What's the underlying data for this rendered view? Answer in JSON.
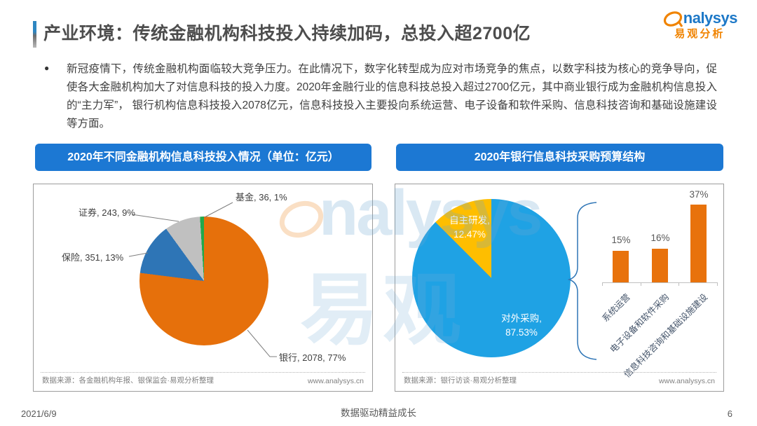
{
  "header": {
    "title": "产业环境：传统金融机构科技投入持续加码，总投入超2700亿",
    "logo": {
      "brand_en": "nalysys",
      "brand_cn": "易观分析"
    }
  },
  "body": {
    "bullet_glyph": "●",
    "paragraph": "新冠疫情下，传统金融机构面临较大竞争压力。在此情况下，数字化转型成为应对市场竞争的焦点，以数字科技为核心的竞争导向，促使各大金融机构加大了对信息科技的投入力度。2020年金融行业的信息科技总投入超过2700亿元，其中商业银行成为金融机构信息投入的“主力军”， 银行机构信息科技投入2078亿元，信息科技投入主要投向系统运营、电子设备和软件采购、信息科技咨询和基础设施建设等方面。"
  },
  "left_panel": {
    "header": "2020年不同金融机构信息科技投入情况（单位：亿元）",
    "callouts": {
      "fund": "基金, 36, 1%",
      "securities": "证券, 243, 9%",
      "insurance": "保险, 351, 13%",
      "bank": "银行, 2078, 77%"
    },
    "source": "数据来源：各金融机构年报、银保监会·易观分析整理",
    "site": "www.analysys.cn"
  },
  "right_panel": {
    "header": "2020年银行信息科技采购预算结构",
    "pie_labels": {
      "inhouse_line1": "自主研发,",
      "inhouse_line2": "12.47%",
      "external_line1": "对外采购,",
      "external_line2": "87.53%"
    },
    "bar_value_labels": [
      "15%",
      "16%",
      "37%"
    ],
    "bar_categories": [
      "系统运营",
      "电子设备和软件采购",
      "信息科技咨询和基础设施建设"
    ],
    "source": "数据来源：银行访谈·易观分析整理",
    "site": "www.analysys.cn"
  },
  "watermark": {
    "text_en": "nalysys",
    "text_cn": "易观"
  },
  "footer": {
    "date": "2021/6/9",
    "center": "数据驱动精益成长",
    "page_number": "6"
  },
  "colors": {
    "pill_blue": "#1c78d3",
    "bank_orange": "#e6700b",
    "insurance_blue": "#2e75b6",
    "securities_gray": "#c0c0c0",
    "fund_green": "#21a94b",
    "external_blue": "#1fa2e4",
    "inhouse_yellow": "#febe00",
    "bar_orange": "#e8720c",
    "logo_orange": "#f08300",
    "logo_blue": "#1d78c7"
  },
  "chart_data": [
    {
      "type": "pie",
      "title": "2020年不同金融机构信息科技投入情况（单位：亿元）",
      "start": "top-clockwise",
      "slices": [
        {
          "label": "银行",
          "value": 2078,
          "pct": 77,
          "color": "#e6700b"
        },
        {
          "label": "保险",
          "value": 351,
          "pct": 13,
          "color": "#2e75b6"
        },
        {
          "label": "证券",
          "value": 243,
          "pct": 9,
          "color": "#c0c0c0"
        },
        {
          "label": "基金",
          "value": 36,
          "pct": 1,
          "color": "#21a94b"
        }
      ]
    },
    {
      "type": "pie",
      "title": "2020年银行信息科技采购预算结构",
      "start": "top-clockwise",
      "slices": [
        {
          "label": "对外采购",
          "pct": 87.53,
          "color": "#1fa2e4"
        },
        {
          "label": "自主研发",
          "pct": 12.47,
          "color": "#febe00"
        }
      ]
    },
    {
      "type": "bar",
      "title": "2020年银行信息科技采购预算结构（细分）",
      "categories": [
        "系统运营",
        "电子设备和软件采购",
        "信息科技咨询和基础设施建设"
      ],
      "values": [
        15,
        16,
        37
      ],
      "unit": "%",
      "color": "#e8720c",
      "ylim": [
        0,
        40
      ]
    }
  ]
}
